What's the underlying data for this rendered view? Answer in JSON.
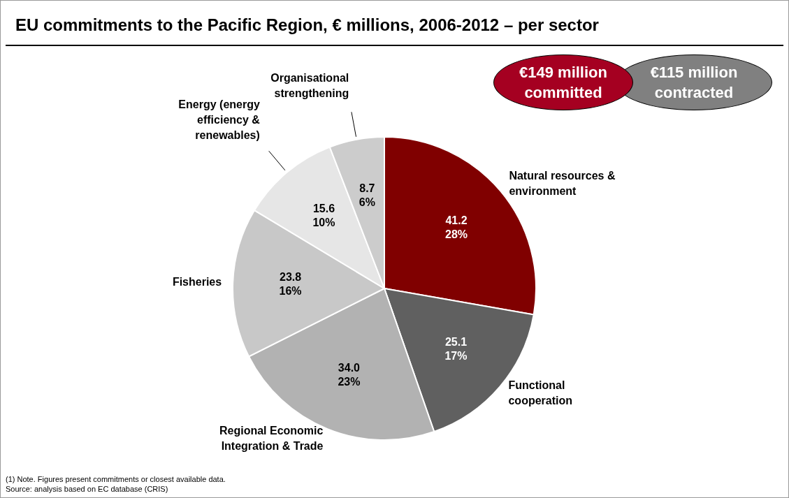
{
  "chart_data": {
    "type": "pie",
    "title": "EU commitments to the Pacific Region, € millions, 2006-2012 – per sector",
    "categories": [
      "Natural resources & environment",
      "Functional cooperation",
      "Regional Economic Integration & Trade",
      "Fisheries",
      "Energy (energy efficiency & renewables)",
      "Organisational strengthening"
    ],
    "values": [
      41.2,
      25.1,
      34.0,
      23.8,
      15.6,
      8.7
    ],
    "colors": [
      "#800000",
      "#606060",
      "#b2b2b2",
      "#c8c8c8",
      "#e6e6e6",
      "#cccccc"
    ],
    "value_labels": [
      "41.2\n28%",
      "25.1\n17%",
      "34.0\n23%",
      "23.8\n16%",
      "15.6\n10%",
      "8.7\n6%"
    ],
    "legend": false,
    "annotations": [
      "€149 million committed",
      "€115 million contracted",
      "(1) Note. Figures present commitments or closest available data.",
      "Source: analysis based on EC database (CRIS)"
    ]
  }
}
